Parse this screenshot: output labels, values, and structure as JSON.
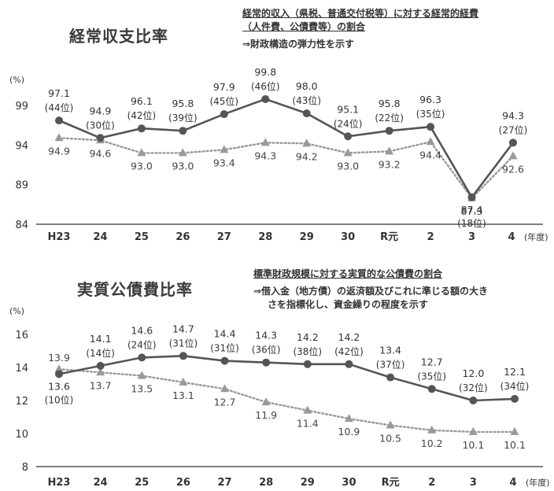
{
  "chart_data": [
    {
      "type": "line",
      "title": "経常収支比率",
      "description_lines_underlined": [
        "経常的収入（県税、普通交付税等）に対する経常的経費",
        "（人件費、公債費等）の割合"
      ],
      "description_lines": [
        "⇒財政構造の弾力性を示す"
      ],
      "ylabel": "(%)",
      "xlabel": "(年度)",
      "ylim": [
        84,
        101
      ],
      "yticks": [
        "84",
        "89",
        "94",
        "99"
      ],
      "categories": [
        "H23",
        "24",
        "25",
        "26",
        "27",
        "28",
        "29",
        "30",
        "R元",
        "2",
        "3",
        "4"
      ],
      "grid": false,
      "series": [
        {
          "style": "solid-circle",
          "values": [
            97.1,
            94.9,
            96.1,
            95.8,
            97.9,
            99.8,
            98.0,
            95.1,
            95.8,
            96.3,
            87.4,
            94.3
          ],
          "value_labels": [
            "97.1",
            "94.9",
            "96.1",
            "95.8",
            "97.9",
            "99.8",
            "98.0",
            "95.1",
            "95.8",
            "96.3",
            "87.4",
            "94.3"
          ],
          "rank_labels": [
            "(44位)",
            "(30位)",
            "(42位)",
            "(39位)",
            "(45位)",
            "(46位)",
            "(43位)",
            "(24位)",
            "(22位)",
            "(35位)",
            "(18位)",
            "(27位)"
          ]
        },
        {
          "style": "dotted-triangle",
          "values": [
            94.9,
            94.6,
            93.0,
            93.0,
            93.4,
            94.3,
            94.2,
            93.0,
            93.2,
            94.4,
            87.3,
            92.6
          ],
          "value_labels": [
            "94.9",
            "94.6",
            "93.0",
            "93.0",
            "93.4",
            "94.3",
            "94.2",
            "93.0",
            "93.2",
            "94.4",
            "87.3",
            "92.6"
          ]
        }
      ]
    },
    {
      "type": "line",
      "title": "実質公債費比率",
      "description_lines_underlined": [
        "標準財政規模に対する実質的な公債費の割合"
      ],
      "description_lines": [
        "⇒借入金（地方債）の返済額及びこれに準じる額の大き",
        "さを指標化し、資金繰りの程度を示す"
      ],
      "ylabel": "(%)",
      "xlabel": "(年度)",
      "ylim": [
        8,
        16
      ],
      "yticks": [
        "8",
        "10",
        "12",
        "14",
        "16"
      ],
      "categories": [
        "H23",
        "24",
        "25",
        "26",
        "27",
        "28",
        "29",
        "30",
        "R元",
        "2",
        "3",
        "4"
      ],
      "grid": false,
      "series": [
        {
          "style": "solid-circle",
          "values": [
            13.6,
            14.1,
            14.6,
            14.7,
            14.4,
            14.3,
            14.2,
            14.2,
            13.4,
            12.7,
            12.0,
            12.1
          ],
          "value_labels": [
            "13.6",
            "14.1",
            "14.6",
            "14.7",
            "14.4",
            "14.3",
            "14.2",
            "14.2",
            "13.4",
            "12.7",
            "12.0",
            "12.1"
          ],
          "rank_labels": [
            "(10位)",
            "(14位)",
            "(24位)",
            "(31位)",
            "(31位)",
            "(36位)",
            "(38位)",
            "(42位)",
            "(37位)",
            "(35位)",
            "(32位)",
            "(34位)"
          ]
        },
        {
          "style": "dotted-triangle",
          "values": [
            13.9,
            13.7,
            13.5,
            13.1,
            12.7,
            11.9,
            11.4,
            10.9,
            10.5,
            10.2,
            10.1,
            10.1
          ],
          "value_labels": [
            "13.9",
            "13.7",
            "13.5",
            "13.1",
            "12.7",
            "11.9",
            "11.4",
            "10.9",
            "10.5",
            "10.2",
            "10.1",
            "10.1"
          ]
        }
      ]
    }
  ],
  "colors": {
    "primary_series": "#555555",
    "secondary_series": "#999999",
    "axis": "#333333",
    "text": "#333333"
  }
}
